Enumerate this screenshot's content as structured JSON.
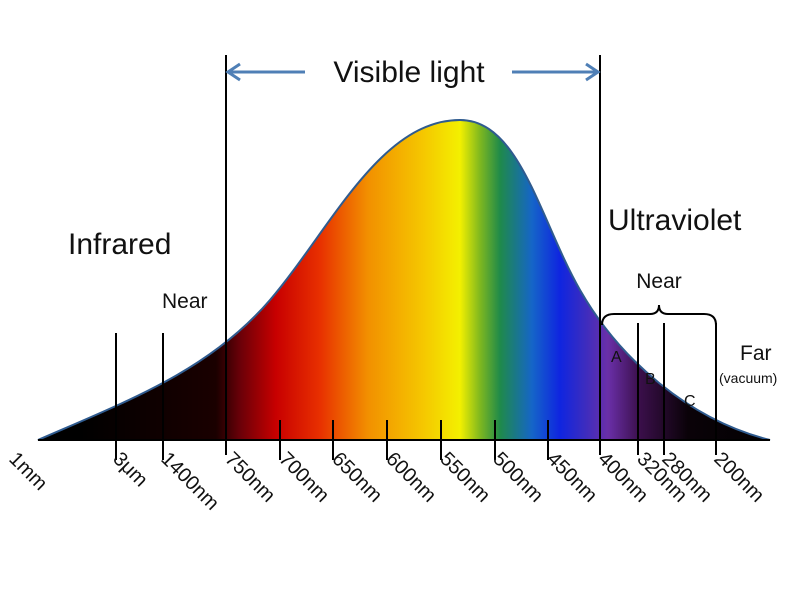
{
  "labels": {
    "visible_light": "Visible light",
    "infrared": "Infrared",
    "ultraviolet": "Ultraviolet",
    "near_ir": "Near",
    "near_uv": "Near",
    "band_a": "A",
    "band_b": "B",
    "band_c": "C",
    "far": "Far",
    "vacuum": "(vacuum)"
  },
  "ticks": [
    "1mm",
    "3μm",
    "1400nm",
    "750nm",
    "700nm",
    "650nm",
    "600nm",
    "550nm",
    "500nm",
    "450nm",
    "400nm",
    "320nm",
    "280nm",
    "200nm"
  ],
  "colors": {
    "arrow": "#4f7fb6",
    "curve_outline": "#2f5b8f",
    "spectrum": [
      "#000000",
      "#4a0008",
      "#c80000",
      "#ee3a00",
      "#f6a000",
      "#f7d800",
      "#f3f000",
      "#1f8f45",
      "#1565c8",
      "#1020e0",
      "#6a2fa8",
      "#2a0d3a",
      "#000000"
    ]
  }
}
